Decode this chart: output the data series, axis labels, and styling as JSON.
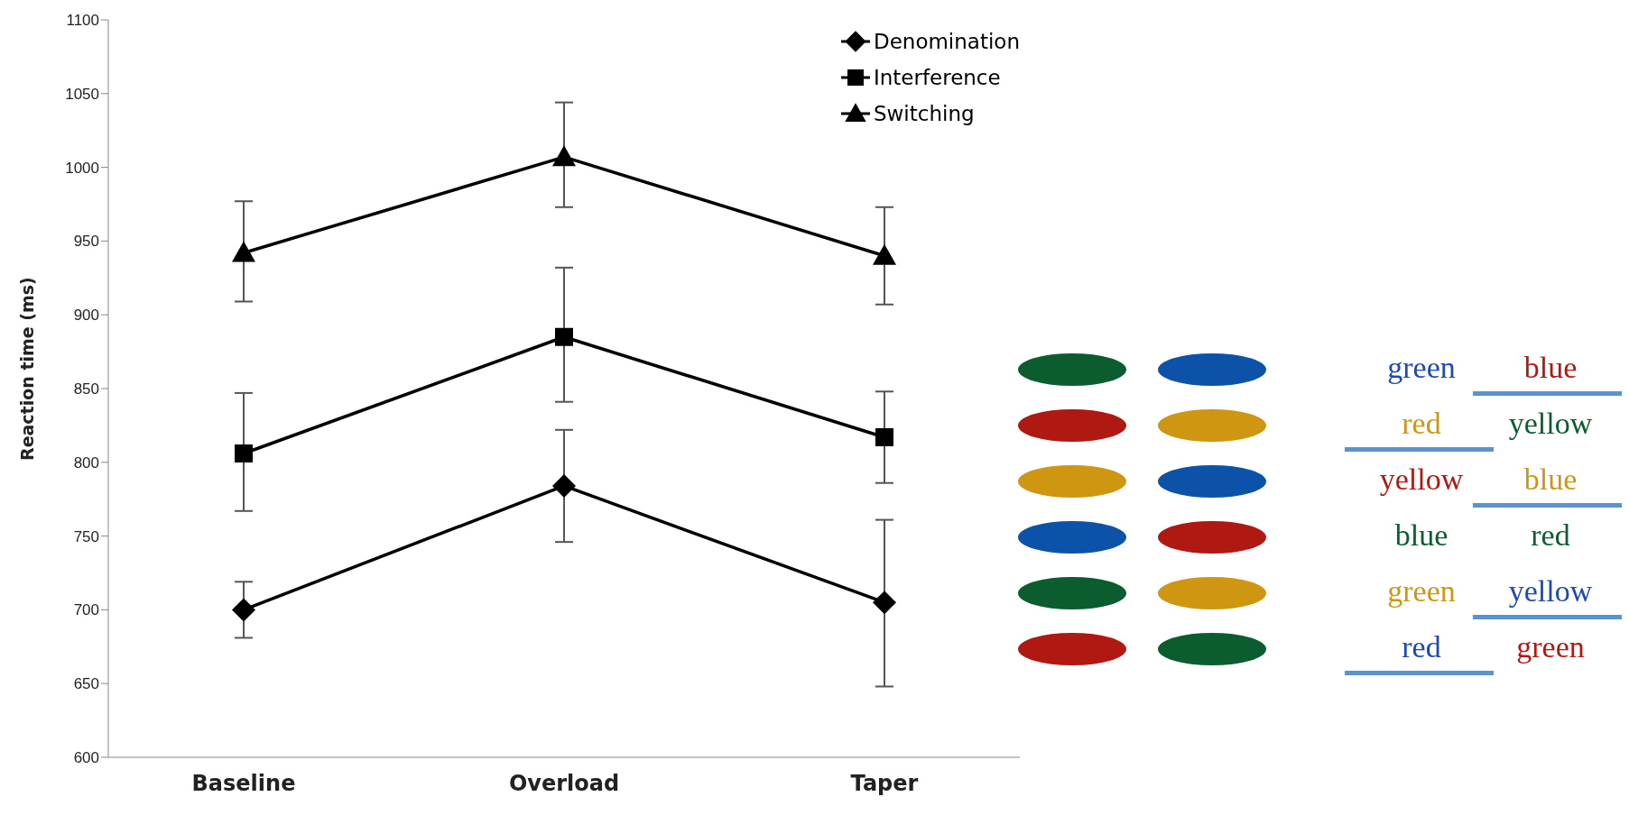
{
  "chart_data": [
    {
      "type": "line",
      "ylabel": "Reaction time (ms)",
      "categories": [
        "Baseline",
        "Overload",
        "Taper"
      ],
      "ylim": [
        600,
        1100
      ],
      "yticks": [
        600,
        650,
        700,
        750,
        800,
        850,
        900,
        950,
        1000,
        1050,
        1100
      ],
      "legend": "top right",
      "line_style": "solid",
      "series": [
        {
          "name": "Denomination",
          "color": "#000000",
          "marker": "diamond",
          "values": [
            700,
            784,
            705
          ],
          "errors": [
            [
              681,
              719
            ],
            [
              746,
              822
            ],
            [
              648,
              761
            ]
          ]
        },
        {
          "name": "Interference",
          "color": "#000000",
          "marker": "square",
          "values": [
            806,
            885,
            817
          ],
          "errors": [
            [
              767,
              847
            ],
            [
              841,
              932
            ],
            [
              786,
              848
            ]
          ]
        },
        {
          "name": "Switching",
          "color": "#000000",
          "marker": "triangle",
          "values": [
            942,
            1007,
            940
          ],
          "errors": [
            [
              909,
              977
            ],
            [
              973,
              1044
            ],
            [
              907,
              973
            ]
          ]
        }
      ]
    },
    {
      "type": "other",
      "annotations": [
        "green",
        "blue",
        "red",
        "yellow",
        "yellow",
        "blue",
        "blue",
        "red",
        "green",
        "yellow",
        "red",
        "green"
      ]
    }
  ]
}
